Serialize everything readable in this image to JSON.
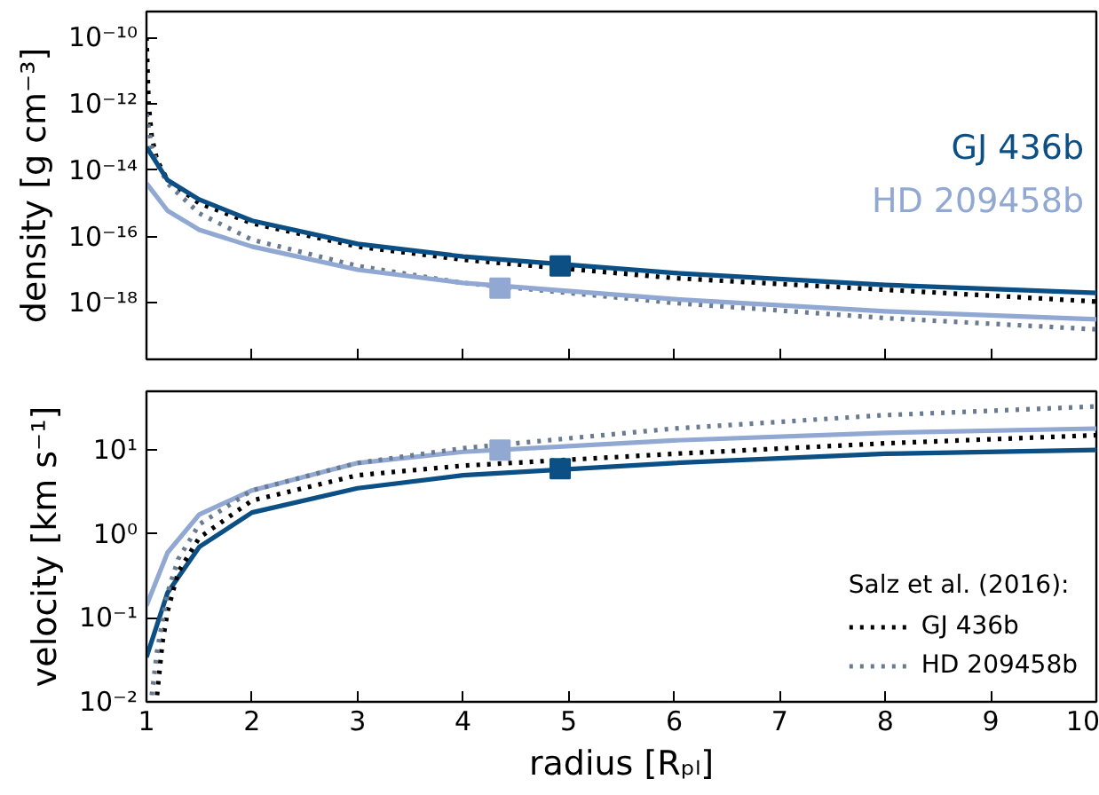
{
  "chart_data": [
    {
      "type": "line",
      "ylabel": "density [g cm⁻³]",
      "log": "y",
      "grid": false,
      "legend": false,
      "tick_labels": "y",
      "xlim": [
        1,
        10
      ],
      "xticks": [
        1,
        2,
        3,
        4,
        5,
        6,
        7,
        8,
        9,
        10
      ],
      "ylim": [
        2e-20,
        6e-10
      ],
      "yticks": [
        {
          "value": 1e-18,
          "label": "10⁻¹⁸"
        },
        {
          "value": 1e-16,
          "label": "10⁻¹⁶"
        },
        {
          "value": 1e-14,
          "label": "10⁻¹⁴"
        },
        {
          "value": 1e-12,
          "label": "10⁻¹²"
        },
        {
          "value": 1e-10,
          "label": "10⁻¹⁰"
        }
      ],
      "series": [
        {
          "line_style": "dotted",
          "color": "#000000",
          "x": [
            1,
            1.02,
            1.05,
            1.1,
            1.2,
            1.5,
            2,
            3,
            4,
            6,
            8,
            10
          ],
          "values": [
            1e-10,
            1e-12,
            1e-13,
            2e-14,
            5e-15,
            1e-15,
            2.5e-16,
            5e-17,
            2e-17,
            5.6e-18,
            2.5e-18,
            1.1e-18
          ]
        },
        {
          "line_style": "dotted",
          "color": "#6b7b8f",
          "x": [
            1,
            1.05,
            1.1,
            1.2,
            1.5,
            2,
            3,
            4,
            6,
            8,
            10
          ],
          "values": [
            5e-13,
            5e-14,
            1.6e-14,
            4e-15,
            5e-16,
            8e-17,
            1.3e-17,
            4e-18,
            1e-18,
            3.5e-19,
            1.6e-19
          ]
        },
        {
          "line_style": "solid",
          "name": "GJ 436b",
          "color": "#0b4f84",
          "x": [
            1,
            1.2,
            1.5,
            2,
            3,
            4,
            6,
            8,
            10
          ],
          "values": [
            5e-14,
            5e-15,
            1.3e-15,
            3e-16,
            6e-17,
            2.5e-17,
            8e-18,
            3.5e-18,
            2e-18
          ]
        },
        {
          "line_style": "solid",
          "name": "HD 209458b",
          "color": "#91a8d3",
          "x": [
            1,
            1.2,
            1.5,
            2,
            3,
            4,
            6,
            8,
            10
          ],
          "values": [
            4e-15,
            6e-16,
            1.6e-16,
            5e-17,
            1e-17,
            4e-18,
            1.3e-18,
            5.6e-19,
            3.2e-19
          ]
        },
        {
          "type": "scatter",
          "marker": "square",
          "color": "#0b4f84",
          "x": [
            4.92
          ],
          "values": [
            1.3e-17
          ]
        },
        {
          "type": "scatter",
          "marker": "square",
          "color": "#91a8d3",
          "x": [
            4.35
          ],
          "values": [
            2.8e-18
          ]
        }
      ]
    },
    {
      "type": "line",
      "ylabel": "velocity [km s⁻¹]",
      "xlabel": "radius [Rₚₗ]",
      "log": "y",
      "grid": false,
      "legend": "bottom right",
      "legend_title": "Salz et al. (2016):",
      "xlim": [
        1,
        10
      ],
      "xticks": [
        1,
        2,
        3,
        4,
        5,
        6,
        7,
        8,
        9,
        10
      ],
      "ylim": [
        0.01,
        50
      ],
      "yticks": [
        {
          "value": 0.01,
          "label": "10⁻²"
        },
        {
          "value": 0.1,
          "label": "10⁻¹"
        },
        {
          "value": 1,
          "label": "10⁰"
        },
        {
          "value": 10,
          "label": "10¹"
        }
      ],
      "series": [
        {
          "line_style": "solid",
          "color": "#0b4f84",
          "x": [
            1,
            1.2,
            1.5,
            2,
            3,
            4,
            6,
            8,
            10
          ],
          "values": [
            0.034,
            0.2,
            0.7,
            1.8,
            3.5,
            5,
            7,
            9,
            10
          ]
        },
        {
          "line_style": "solid",
          "color": "#91a8d3",
          "x": [
            1,
            1.2,
            1.5,
            2,
            3,
            4,
            6,
            8,
            10
          ],
          "values": [
            0.14,
            0.6,
            1.7,
            3.3,
            7,
            9.5,
            13,
            16,
            18
          ]
        },
        {
          "line_style": "dotted",
          "name": "GJ 436b",
          "color": "#000000",
          "x": [
            1.1,
            1.15,
            1.2,
            1.3,
            1.5,
            2,
            3,
            4,
            6,
            8,
            10
          ],
          "values": [
            0.012,
            0.05,
            0.12,
            0.35,
            0.9,
            2.5,
            5,
            6.5,
            9,
            12,
            15
          ]
        },
        {
          "line_style": "dotted",
          "name": "HD 209458b",
          "color": "#6b7b8f",
          "x": [
            1.05,
            1.1,
            1.2,
            1.3,
            1.5,
            2,
            3,
            4,
            6,
            8,
            10
          ],
          "values": [
            0.012,
            0.04,
            0.2,
            0.5,
            1.3,
            3.3,
            7,
            10.5,
            18,
            26,
            33
          ]
        },
        {
          "type": "scatter",
          "marker": "square",
          "color": "#0b4f84",
          "x": [
            4.92
          ],
          "values": [
            6
          ]
        },
        {
          "type": "scatter",
          "marker": "square",
          "color": "#91a8d3",
          "x": [
            4.35
          ],
          "values": [
            10
          ]
        }
      ]
    }
  ]
}
